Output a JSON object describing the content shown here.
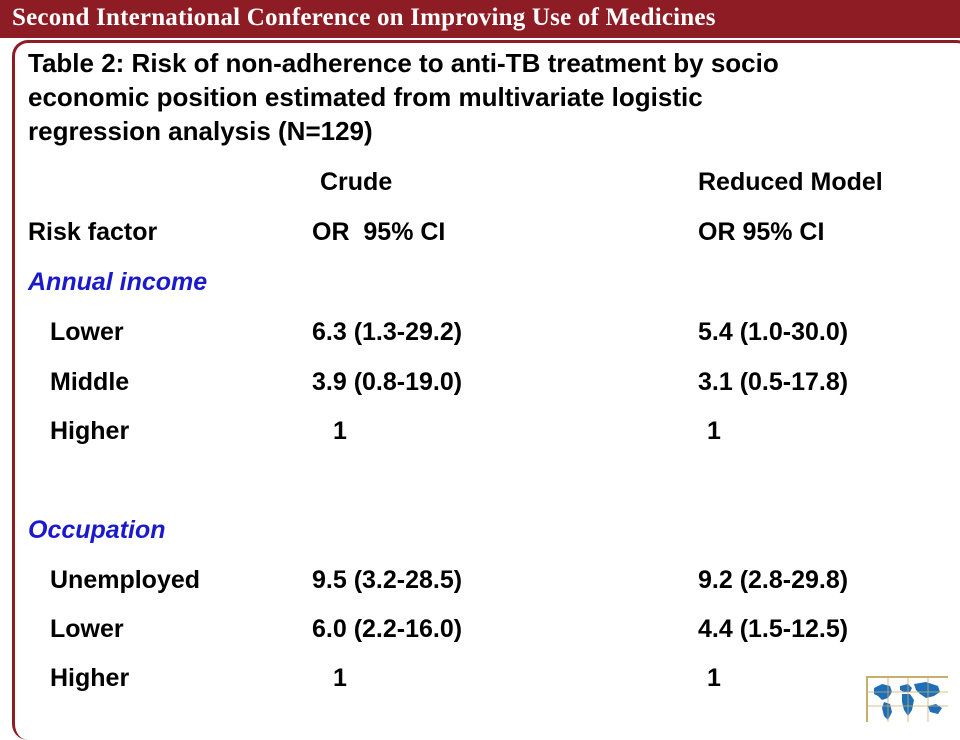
{
  "header": {
    "title": "Second International Conference on Improving Use of Medicines"
  },
  "slide": {
    "title": "Table 2: Risk of non-adherence to anti-TB treatment by socio\neconomic position estimated from multivariate logistic\nregression analysis (N=129)"
  },
  "table": {
    "group_headers": {
      "crude": "Crude",
      "reduced": "Reduced Model"
    },
    "col_headers": {
      "risk_factor": "Risk factor",
      "crude": "OR  95% CI",
      "reduced": "OR 95% CI"
    },
    "sections": [
      {
        "label": "Annual income",
        "rows": [
          {
            "factor": "Lower",
            "crude": "6.3 (1.3-29.2)",
            "reduced": "5.4 (1.0-30.0)"
          },
          {
            "factor": "Middle",
            "crude": "3.9 (0.8-19.0)",
            "reduced": "3.1 (0.5-17.8)"
          },
          {
            "factor": "Higher",
            "crude": "1",
            "reduced": "1"
          }
        ]
      },
      {
        "label": "Occupation",
        "rows": [
          {
            "factor": "Unemployed",
            "crude": "9.5 (3.2-28.5)",
            "reduced": "9.2 (2.8-29.8)"
          },
          {
            "factor": "Lower",
            "crude": "6.0 (2.2-16.0)",
            "reduced": "4.4 (1.5-12.5)"
          },
          {
            "factor": "Higher",
            "crude": "1",
            "reduced": "1"
          }
        ]
      }
    ]
  },
  "colors": {
    "header_bg": "#8e1c24",
    "section_label": "#1a1acc",
    "logo_accent": "#1f6fb8"
  },
  "logo": {
    "icon": "world-map-icon"
  }
}
